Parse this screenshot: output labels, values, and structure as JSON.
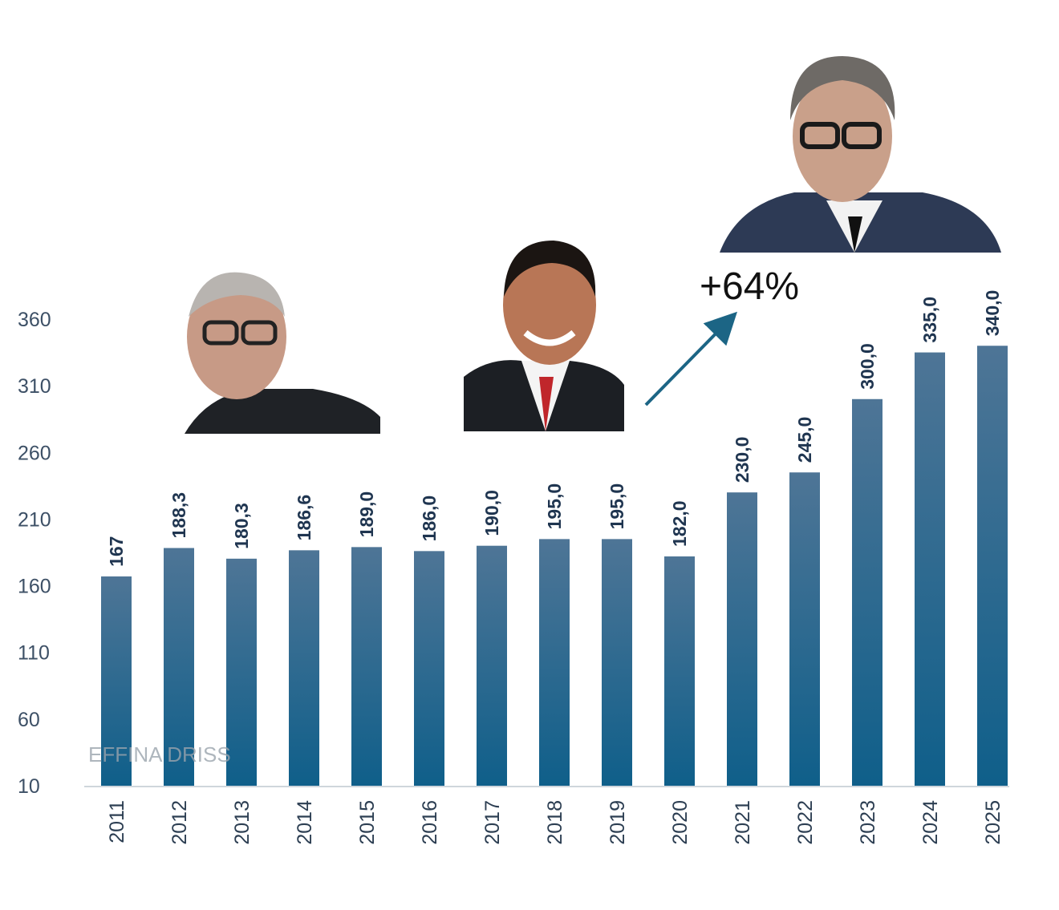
{
  "chart_data": {
    "type": "bar",
    "title": "",
    "xlabel": "",
    "ylabel": "",
    "categories": [
      "2011",
      "2012",
      "2013",
      "2014",
      "2015",
      "2016",
      "2017",
      "2018",
      "2019",
      "2020",
      "2021",
      "2022",
      "2023",
      "2024",
      "2025"
    ],
    "values": [
      167,
      188.3,
      180.3,
      186.6,
      189.0,
      186.0,
      190.0,
      195.0,
      195.0,
      182.0,
      230.0,
      245.0,
      300.0,
      335.0,
      340.0
    ],
    "data_labels": [
      "167",
      "188,3",
      "180,3",
      "186,6",
      "189,0",
      "186,0",
      "190,0",
      "195,0",
      "195,0",
      "182,0",
      "230,0",
      "245,0",
      "300,0",
      "335,0",
      "340,0"
    ],
    "ylim": [
      10,
      360
    ],
    "yticks": [
      "10",
      "60",
      "110",
      "160",
      "210",
      "260",
      "310",
      "360"
    ],
    "grid": false,
    "annotation": "+64%",
    "watermark": "EFFINA DRISS",
    "colors": {
      "bar_top": "#4e7596",
      "bar_bottom": "#0f5f8a",
      "label": "#1f3550",
      "arrow": "#1c6585"
    }
  }
}
